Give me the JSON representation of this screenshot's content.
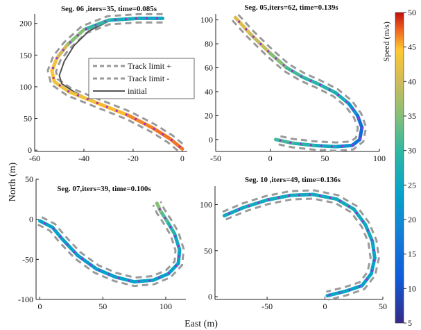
{
  "chart_data": [
    {
      "type": "line",
      "title": "Seg. 06 ,iters=35, time=0.085s",
      "xlim": [
        -60,
        2
      ],
      "ylim": [
        -2,
        215
      ],
      "xticks": [
        -60,
        -40,
        -20,
        0
      ],
      "yticks": [
        0,
        50,
        100,
        150,
        200
      ],
      "xlabel": "",
      "ylabel": "",
      "legend": {
        "placement": "center",
        "entries": [
          "Track limit +",
          "Track limit -",
          "initial"
        ]
      },
      "centerline": [
        [
          -8,
          208
        ],
        [
          -18,
          208
        ],
        [
          -30,
          205
        ],
        [
          -40,
          190
        ],
        [
          -47,
          165
        ],
        [
          -51,
          145
        ],
        [
          -53,
          125
        ],
        [
          -52,
          108
        ],
        [
          -46,
          92
        ],
        [
          -35,
          75
        ],
        [
          -22,
          55
        ],
        [
          -12,
          35
        ],
        [
          -5,
          18
        ],
        [
          0,
          2
        ]
      ],
      "initial": [
        [
          -8,
          208
        ],
        [
          -28,
          207
        ],
        [
          -38,
          188
        ],
        [
          -44,
          165
        ],
        [
          -48,
          140
        ],
        [
          -50,
          118
        ],
        [
          -49,
          105
        ],
        [
          -44,
          92
        ],
        [
          -34,
          73
        ],
        [
          -22,
          55
        ],
        [
          -12,
          35
        ],
        [
          -5,
          18
        ],
        [
          0,
          2
        ]
      ],
      "speed": [
        25,
        25,
        28,
        32,
        38,
        42,
        44,
        44,
        42,
        44,
        46,
        47,
        47,
        47
      ]
    },
    {
      "type": "line",
      "title": "Seg. 05,iters=62, time=0.139s",
      "xlim": [
        -50,
        100
      ],
      "ylim": [
        -10,
        105
      ],
      "xticks": [
        -50,
        0,
        50,
        100
      ],
      "yticks": [
        0,
        20,
        40,
        60,
        80,
        100
      ],
      "xlabel": "",
      "ylabel": "",
      "centerline": [
        [
          -32,
          102
        ],
        [
          -18,
          88
        ],
        [
          0,
          72
        ],
        [
          15,
          60
        ],
        [
          30,
          52
        ],
        [
          45,
          46
        ],
        [
          60,
          39
        ],
        [
          72,
          30
        ],
        [
          80,
          20
        ],
        [
          84,
          10
        ],
        [
          82,
          0
        ],
        [
          75,
          -5
        ],
        [
          60,
          -6
        ],
        [
          40,
          -5
        ],
        [
          20,
          -3
        ],
        [
          5,
          0
        ]
      ],
      "speed": [
        42,
        40,
        38,
        32,
        30,
        29,
        28,
        26,
        16,
        14,
        14,
        18,
        24,
        28,
        30,
        32
      ]
    },
    {
      "type": "line",
      "title": "Seg. 07,iters=39, time=0.100s",
      "xlim": [
        -3,
        116
      ],
      "ylim": [
        -100,
        50
      ],
      "xticks": [
        0,
        50,
        100
      ],
      "yticks": [
        -100,
        -50,
        0,
        50
      ],
      "xlabel": "",
      "ylabel": "",
      "centerline": [
        [
          0,
          -2
        ],
        [
          10,
          -10
        ],
        [
          18,
          -25
        ],
        [
          30,
          -45
        ],
        [
          45,
          -62
        ],
        [
          60,
          -72
        ],
        [
          75,
          -78
        ],
        [
          90,
          -76
        ],
        [
          102,
          -68
        ],
        [
          110,
          -55
        ],
        [
          111,
          -38
        ],
        [
          107,
          -18
        ],
        [
          101,
          -2
        ],
        [
          96,
          10
        ],
        [
          93,
          20
        ]
      ],
      "speed": [
        24,
        24,
        24,
        22,
        23,
        24,
        24,
        24,
        24,
        24,
        24,
        27,
        30,
        34,
        36
      ]
    },
    {
      "type": "line",
      "title": "Seg. 10 ,iters=49, time=0.136s",
      "xlim": [
        -95,
        50
      ],
      "ylim": [
        -3,
        120
      ],
      "xticks": [
        -50,
        0,
        50
      ],
      "yticks": [
        0,
        50,
        100
      ],
      "xlabel": "",
      "ylabel": "",
      "centerline": [
        [
          -87,
          88
        ],
        [
          -70,
          97
        ],
        [
          -50,
          105
        ],
        [
          -30,
          110
        ],
        [
          -10,
          111
        ],
        [
          10,
          106
        ],
        [
          25,
          95
        ],
        [
          35,
          78
        ],
        [
          41,
          60
        ],
        [
          43,
          42
        ],
        [
          40,
          25
        ],
        [
          32,
          12
        ],
        [
          18,
          6
        ],
        [
          2,
          1
        ]
      ],
      "speed": [
        25,
        26,
        26,
        26,
        26,
        26,
        26,
        25,
        25,
        24,
        24,
        24,
        24,
        25
      ]
    }
  ],
  "xlabel": "East (m)",
  "ylabel": "North (m)",
  "colorbar": {
    "label": "Speed (m/s)",
    "min": 5,
    "max": 50,
    "ticks": [
      5,
      10,
      15,
      20,
      25,
      30,
      35,
      40,
      45,
      50
    ]
  }
}
